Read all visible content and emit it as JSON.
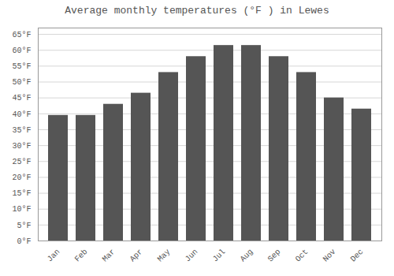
{
  "chart_data": {
    "type": "bar",
    "title": "Average monthly temperatures (°F ) in Lewes",
    "categories": [
      "Jan",
      "Feb",
      "Mar",
      "Apr",
      "May",
      "Jun",
      "Jul",
      "Aug",
      "Sep",
      "Oct",
      "Nov",
      "Dec"
    ],
    "values": [
      39.5,
      39.5,
      43.0,
      46.5,
      53.0,
      58.0,
      61.5,
      61.5,
      58.0,
      53.0,
      45.0,
      41.5
    ],
    "ylim": [
      0,
      67
    ],
    "yticks": [
      {
        "value": 0,
        "label": "0°F"
      },
      {
        "value": 5,
        "label": "5°F"
      },
      {
        "value": 10,
        "label": "10°F"
      },
      {
        "value": 15,
        "label": "15°F"
      },
      {
        "value": 20,
        "label": "20°F"
      },
      {
        "value": 25,
        "label": "25°F"
      },
      {
        "value": 30,
        "label": "30°F"
      },
      {
        "value": 35,
        "label": "35°F"
      },
      {
        "value": 40,
        "label": "40°F"
      },
      {
        "value": 45,
        "label": "45°F"
      },
      {
        "value": 50,
        "label": "50°F"
      },
      {
        "value": 55,
        "label": "55°F"
      },
      {
        "value": 60,
        "label": "60°F"
      },
      {
        "value": 65,
        "label": "65°F"
      }
    ],
    "grid": true
  }
}
